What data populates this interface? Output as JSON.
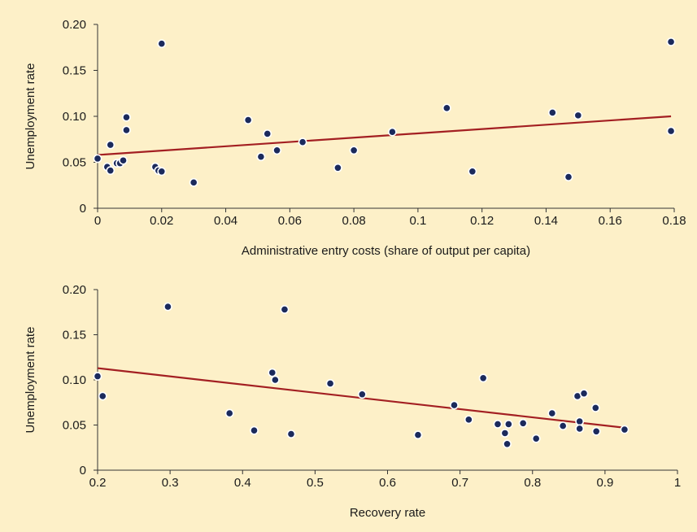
{
  "chart_data": [
    {
      "type": "scatter",
      "xlabel": "Administrative entry costs (share of output per capita)",
      "ylabel": "Unemployment rate",
      "xlim": [
        0,
        0.18
      ],
      "ylim": [
        0,
        0.2
      ],
      "x_ticks": [
        "0",
        "0.02",
        "0.04",
        "0.06",
        "0.08",
        "0.1",
        "0.12",
        "0.14",
        "0.16",
        "0.18"
      ],
      "y_ticks": [
        "0",
        "0.05",
        "0.10",
        "0.15",
        "0.20"
      ],
      "point_color": "#1b2a5c",
      "trend_color": "#a31f22",
      "points": [
        [
          0.0,
          0.054
        ],
        [
          0.003,
          0.045
        ],
        [
          0.004,
          0.069
        ],
        [
          0.004,
          0.041
        ],
        [
          0.006,
          0.049
        ],
        [
          0.007,
          0.049
        ],
        [
          0.008,
          0.052
        ],
        [
          0.009,
          0.099
        ],
        [
          0.009,
          0.085
        ],
        [
          0.018,
          0.045
        ],
        [
          0.019,
          0.041
        ],
        [
          0.02,
          0.04
        ],
        [
          0.02,
          0.179
        ],
        [
          0.03,
          0.028
        ],
        [
          0.047,
          0.096
        ],
        [
          0.051,
          0.056
        ],
        [
          0.053,
          0.081
        ],
        [
          0.056,
          0.063
        ],
        [
          0.064,
          0.072
        ],
        [
          0.075,
          0.044
        ],
        [
          0.08,
          0.063
        ],
        [
          0.092,
          0.083
        ],
        [
          0.109,
          0.109
        ],
        [
          0.117,
          0.04
        ],
        [
          0.142,
          0.104
        ],
        [
          0.147,
          0.034
        ],
        [
          0.15,
          0.101
        ],
        [
          0.179,
          0.181
        ],
        [
          0.179,
          0.084
        ]
      ],
      "trend_line": [
        [
          0.0,
          0.058
        ],
        [
          0.179,
          0.1
        ]
      ]
    },
    {
      "type": "scatter",
      "xlabel": "Recovery rate",
      "ylabel": "Unemployment rate",
      "xlim": [
        0.2,
        1.0
      ],
      "ylim": [
        0,
        0.2
      ],
      "x_ticks": [
        "0.2",
        "0.3",
        "0.4",
        "0.5",
        "0.6",
        "0.7",
        "0.8",
        "0.9",
        "1"
      ],
      "y_ticks": [
        "0",
        "0.05",
        "0.10",
        "0.15",
        "0.20"
      ],
      "point_color": "#1b2a5c",
      "trend_color": "#a31f22",
      "points": [
        [
          0.2,
          0.104
        ],
        [
          0.207,
          0.082
        ],
        [
          0.297,
          0.181
        ],
        [
          0.382,
          0.063
        ],
        [
          0.416,
          0.044
        ],
        [
          0.441,
          0.108
        ],
        [
          0.445,
          0.1
        ],
        [
          0.458,
          0.178
        ],
        [
          0.467,
          0.04
        ],
        [
          0.521,
          0.096
        ],
        [
          0.565,
          0.084
        ],
        [
          0.642,
          0.039
        ],
        [
          0.692,
          0.072
        ],
        [
          0.712,
          0.056
        ],
        [
          0.732,
          0.102
        ],
        [
          0.752,
          0.051
        ],
        [
          0.762,
          0.041
        ],
        [
          0.767,
          0.051
        ],
        [
          0.765,
          0.029
        ],
        [
          0.787,
          0.052
        ],
        [
          0.805,
          0.035
        ],
        [
          0.827,
          0.063
        ],
        [
          0.842,
          0.049
        ],
        [
          0.862,
          0.082
        ],
        [
          0.871,
          0.085
        ],
        [
          0.865,
          0.054
        ],
        [
          0.865,
          0.046
        ],
        [
          0.887,
          0.069
        ],
        [
          0.888,
          0.043
        ],
        [
          0.927,
          0.045
        ]
      ],
      "trend_line": [
        [
          0.2,
          0.113
        ],
        [
          0.927,
          0.047
        ]
      ]
    }
  ]
}
